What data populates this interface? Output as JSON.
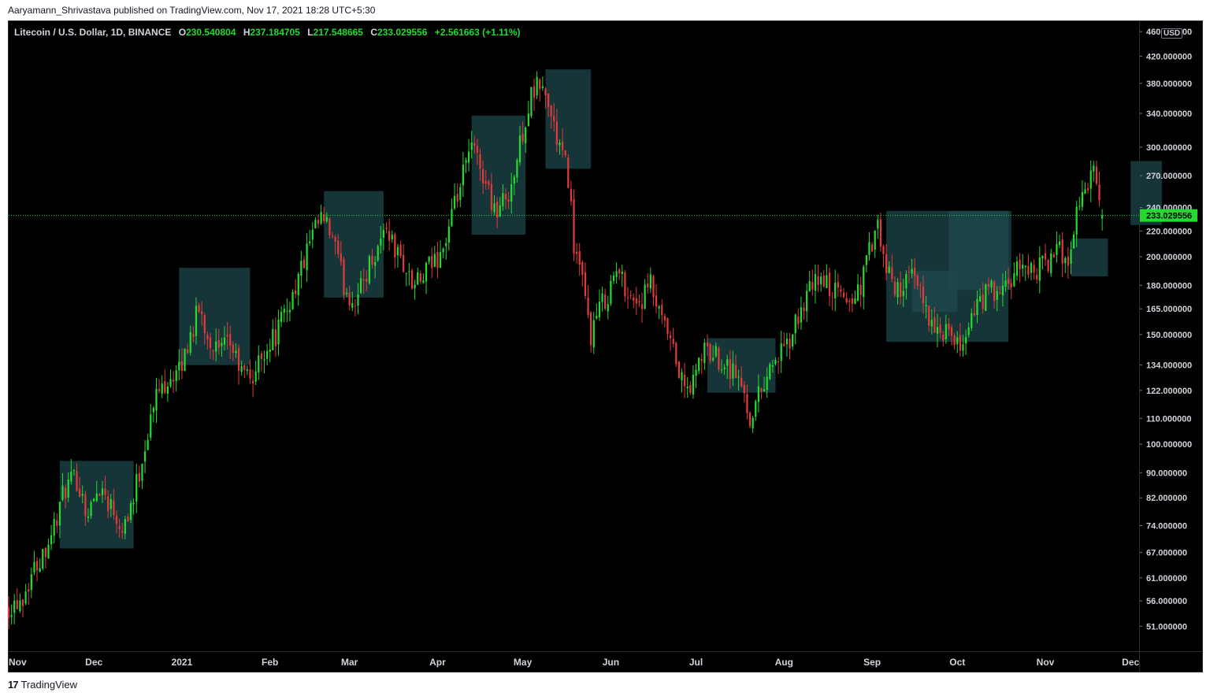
{
  "header": {
    "publish_line": "Aaryamann_Shrivastava published on TradingView.com, Nov 17, 2021 18:28 UTC+5:30"
  },
  "legend": {
    "symbol": "Litecoin / U.S. Dollar, 1D, BINANCE",
    "open_label": "O",
    "open": "230.540804",
    "high_label": "H",
    "high": "237.184705",
    "low_label": "L",
    "low": "217.548665",
    "close_label": "C",
    "close": "233.029556",
    "change": "+2.561663 (+1.11%)"
  },
  "axis": {
    "currency": "USD",
    "last_price": "233.029556"
  },
  "footer": {
    "brand": "TradingView",
    "logo": "17"
  },
  "colors": {
    "up": "#26d930",
    "down": "#e23a3a",
    "box": "#1e4a4e",
    "background": "#000000",
    "axis_text": "#d1d4dc"
  },
  "chart_data": {
    "type": "candlestick",
    "scale": "log",
    "y_ticks": [
      460,
      420,
      380,
      340,
      300,
      270,
      240,
      220,
      200,
      180,
      165,
      150,
      134,
      122,
      110,
      100,
      90,
      82,
      74,
      67,
      61,
      56,
      51
    ],
    "y_tick_labels": [
      "460.000000",
      "420.000000",
      "380.000000",
      "340.000000",
      "300.000000",
      "270.000000",
      "240.000000",
      "220.000000",
      "200.000000",
      "180.000000",
      "165.000000",
      "150.000000",
      "134.000000",
      "122.000000",
      "110.000000",
      "100.000000",
      "90.000000",
      "82.000000",
      "74.000000",
      "67.000000",
      "61.000000",
      "56.000000",
      "51.000000"
    ],
    "x_ticks": [
      {
        "label": "Nov",
        "day": 0
      },
      {
        "label": "Dec",
        "day": 30
      },
      {
        "label": "2021",
        "day": 61
      },
      {
        "label": "Feb",
        "day": 92
      },
      {
        "label": "Mar",
        "day": 120
      },
      {
        "label": "Apr",
        "day": 151
      },
      {
        "label": "May",
        "day": 181
      },
      {
        "label": "Jun",
        "day": 212
      },
      {
        "label": "Jul",
        "day": 242
      },
      {
        "label": "Aug",
        "day": 273
      },
      {
        "label": "Sep",
        "day": 304
      },
      {
        "label": "Oct",
        "day": 334
      },
      {
        "label": "Nov",
        "day": 365
      },
      {
        "label": "Dec",
        "day": 395
      }
    ],
    "last_price": 233.03,
    "close_path": [
      [
        0,
        55
      ],
      [
        5,
        57
      ],
      [
        8,
        62
      ],
      [
        12,
        67
      ],
      [
        16,
        74
      ],
      [
        20,
        85
      ],
      [
        24,
        88
      ],
      [
        28,
        77
      ],
      [
        32,
        86
      ],
      [
        36,
        80
      ],
      [
        40,
        74
      ],
      [
        44,
        82
      ],
      [
        48,
        100
      ],
      [
        52,
        120
      ],
      [
        56,
        128
      ],
      [
        60,
        130
      ],
      [
        64,
        150
      ],
      [
        67,
        165
      ],
      [
        70,
        150
      ],
      [
        74,
        140
      ],
      [
        78,
        145
      ],
      [
        82,
        130
      ],
      [
        86,
        128
      ],
      [
        90,
        142
      ],
      [
        94,
        150
      ],
      [
        98,
        165
      ],
      [
        102,
        185
      ],
      [
        106,
        210
      ],
      [
        110,
        230
      ],
      [
        114,
        215
      ],
      [
        118,
        180
      ],
      [
        121,
        170
      ],
      [
        124,
        178
      ],
      [
        127,
        195
      ],
      [
        130,
        208
      ],
      [
        133,
        225
      ],
      [
        136,
        205
      ],
      [
        139,
        195
      ],
      [
        142,
        180
      ],
      [
        145,
        182
      ],
      [
        148,
        192
      ],
      [
        151,
        200
      ],
      [
        154,
        212
      ],
      [
        157,
        240
      ],
      [
        160,
        270
      ],
      [
        163,
        300
      ],
      [
        166,
        280
      ],
      [
        169,
        255
      ],
      [
        172,
        235
      ],
      [
        175,
        250
      ],
      [
        178,
        270
      ],
      [
        181,
        320
      ],
      [
        184,
        360
      ],
      [
        187,
        380
      ],
      [
        190,
        350
      ],
      [
        193,
        310
      ],
      [
        195,
        290
      ],
      [
        197,
        270
      ],
      [
        199,
        210
      ],
      [
        202,
        180
      ],
      [
        205,
        150
      ],
      [
        208,
        165
      ],
      [
        211,
        175
      ],
      [
        214,
        190
      ],
      [
        217,
        180
      ],
      [
        220,
        170
      ],
      [
        223,
        170
      ],
      [
        226,
        180
      ],
      [
        229,
        160
      ],
      [
        232,
        150
      ],
      [
        235,
        135
      ],
      [
        238,
        122
      ],
      [
        241,
        125
      ],
      [
        244,
        140
      ],
      [
        247,
        140
      ],
      [
        250,
        138
      ],
      [
        253,
        135
      ],
      [
        256,
        130
      ],
      [
        259,
        120
      ],
      [
        261,
        110
      ],
      [
        264,
        120
      ],
      [
        267,
        130
      ],
      [
        270,
        138
      ],
      [
        273,
        140
      ],
      [
        276,
        150
      ],
      [
        279,
        165
      ],
      [
        282,
        175
      ],
      [
        285,
        185
      ],
      [
        288,
        180
      ],
      [
        291,
        175
      ],
      [
        294,
        172
      ],
      [
        297,
        170
      ],
      [
        300,
        180
      ],
      [
        303,
        205
      ],
      [
        306,
        220
      ],
      [
        309,
        190
      ],
      [
        312,
        178
      ],
      [
        315,
        180
      ],
      [
        318,
        185
      ],
      [
        321,
        175
      ],
      [
        324,
        162
      ],
      [
        327,
        148
      ],
      [
        330,
        152
      ],
      [
        333,
        142
      ],
      [
        336,
        146
      ],
      [
        339,
        160
      ],
      [
        342,
        168
      ],
      [
        345,
        178
      ],
      [
        348,
        172
      ],
      [
        351,
        178
      ],
      [
        354,
        185
      ],
      [
        357,
        195
      ],
      [
        360,
        190
      ],
      [
        363,
        192
      ],
      [
        366,
        197
      ],
      [
        368,
        200
      ],
      [
        370,
        205
      ],
      [
        372,
        198
      ],
      [
        374,
        205
      ],
      [
        376,
        235
      ],
      [
        378,
        260
      ],
      [
        380,
        255
      ],
      [
        382,
        275
      ],
      [
        384,
        240
      ],
      [
        385,
        233
      ]
    ],
    "highlight_boxes": [
      {
        "d0": 18,
        "d1": 44,
        "high": 94,
        "low": 68
      },
      {
        "d0": 60,
        "d1": 85,
        "high": 192,
        "low": 134
      },
      {
        "d0": 111,
        "d1": 132,
        "high": 255,
        "low": 172
      },
      {
        "d0": 163,
        "d1": 182,
        "high": 337,
        "low": 217
      },
      {
        "d0": 189,
        "d1": 205,
        "high": 400,
        "low": 277
      },
      {
        "d0": 246,
        "d1": 270,
        "high": 148,
        "low": 121
      },
      {
        "d0": 309,
        "d1": 352,
        "high": 237,
        "low": 146
      },
      {
        "d0": 318,
        "d1": 334,
        "high": 190,
        "low": 163
      },
      {
        "d0": 331,
        "d1": 353,
        "high": 237,
        "low": 177
      },
      {
        "d0": 374,
        "d1": 387,
        "high": 214,
        "low": 186
      },
      {
        "d0": 395,
        "d1": 406,
        "high": 285,
        "low": 225
      }
    ]
  }
}
